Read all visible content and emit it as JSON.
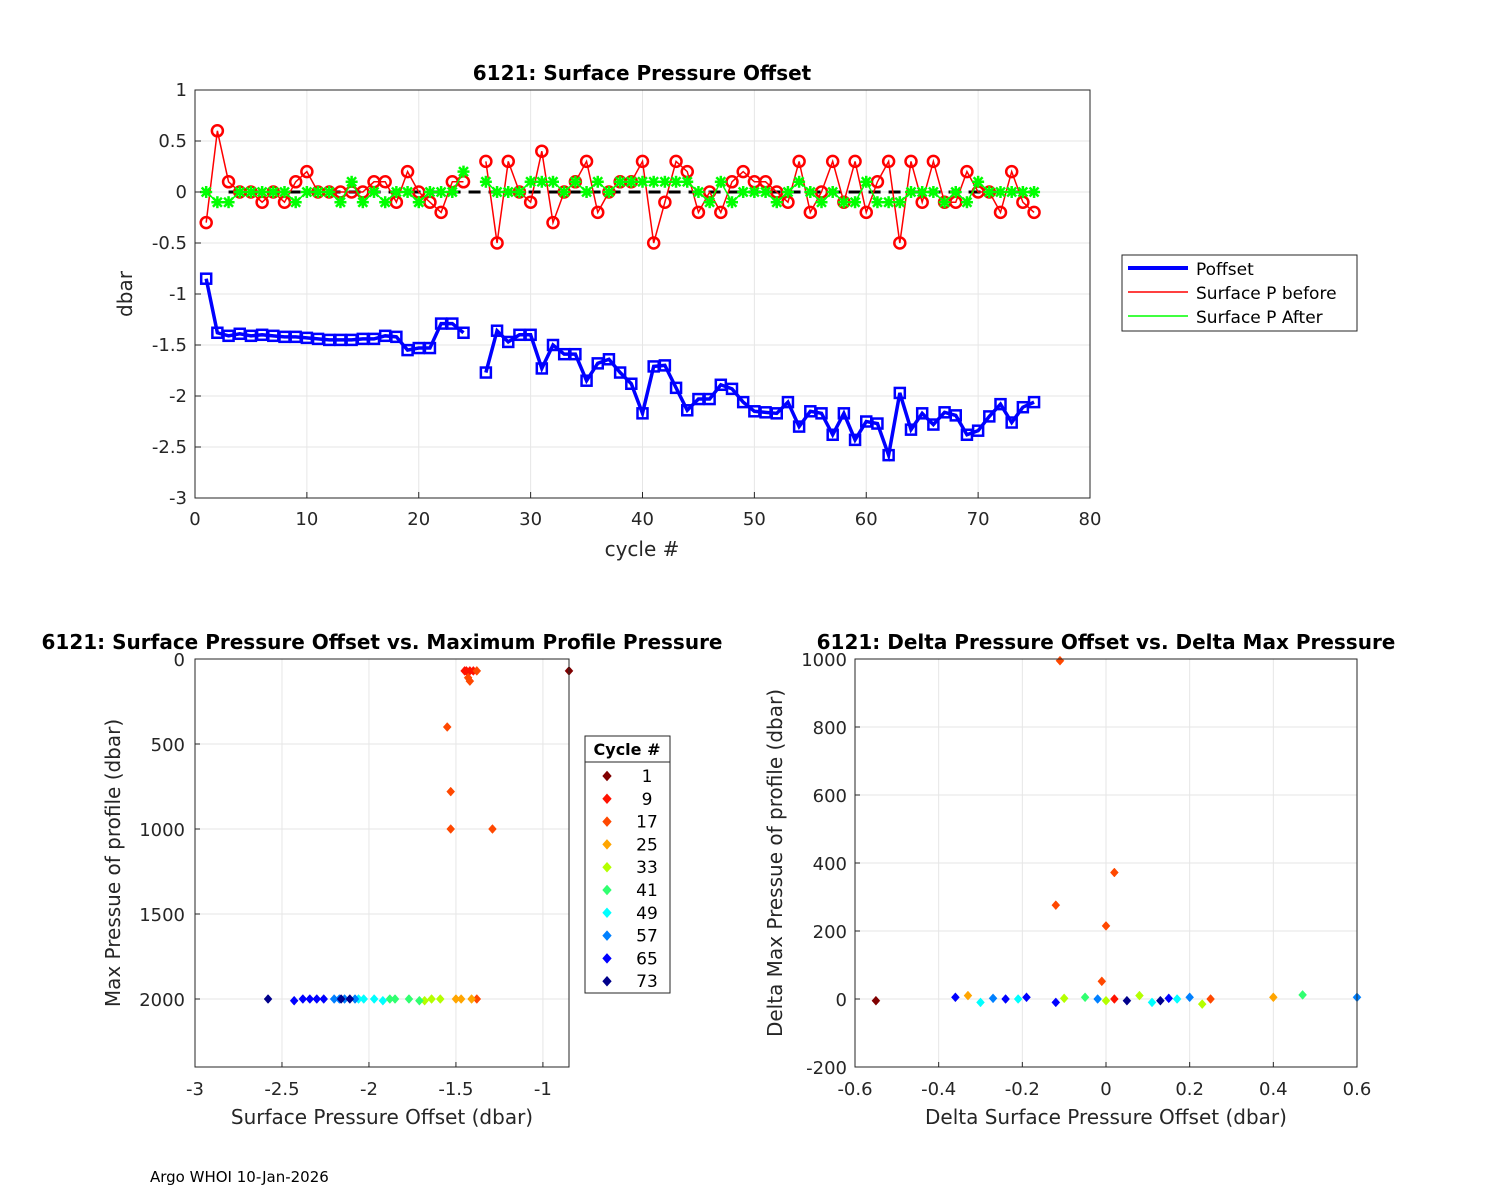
{
  "chart_data": [
    {
      "type": "line",
      "title": "6121: Surface Pressure Offset",
      "xlabel": "cycle #",
      "ylabel": "dbar",
      "xlim": [
        0,
        80
      ],
      "ylim": [
        -3,
        1
      ],
      "xticks": [
        0,
        10,
        20,
        30,
        40,
        50,
        60,
        70,
        80
      ],
      "yticks": [
        1,
        0.5,
        0,
        -0.5,
        -1,
        -1.5,
        -2,
        -2.5,
        -3
      ],
      "grid": true,
      "legend_position": "right",
      "reference_line": {
        "y": 0,
        "style": "dashed",
        "color": "#000000"
      },
      "series": [
        {
          "name": "Poffset",
          "color": "#0000ff",
          "marker": "square",
          "x": [
            1,
            2,
            3,
            4,
            5,
            6,
            7,
            8,
            9,
            10,
            11,
            12,
            13,
            14,
            15,
            16,
            17,
            18,
            19,
            20,
            21,
            22,
            23,
            24,
            26,
            27,
            28,
            29,
            30,
            31,
            32,
            33,
            34,
            35,
            36,
            37,
            38,
            39,
            40,
            41,
            42,
            43,
            44,
            45,
            46,
            47,
            48,
            49,
            50,
            51,
            52,
            53,
            54,
            55,
            56,
            57,
            58,
            59,
            60,
            61,
            62,
            63,
            64,
            65,
            66,
            67,
            68,
            69,
            70,
            71,
            72,
            73,
            74,
            75
          ],
          "values": [
            -0.85,
            -1.38,
            -1.41,
            -1.39,
            -1.41,
            -1.4,
            -1.41,
            -1.42,
            -1.42,
            -1.43,
            -1.44,
            -1.45,
            -1.45,
            -1.45,
            -1.44,
            -1.44,
            -1.41,
            -1.42,
            -1.55,
            -1.53,
            -1.53,
            -1.29,
            -1.29,
            -1.38,
            -1.77,
            -1.36,
            -1.47,
            -1.4,
            -1.4,
            -1.73,
            -1.5,
            -1.59,
            -1.59,
            -1.85,
            -1.68,
            -1.64,
            -1.77,
            -1.88,
            -2.17,
            -1.71,
            -1.7,
            -1.92,
            -2.14,
            -2.03,
            -2.03,
            -1.89,
            -1.93,
            -2.06,
            -2.15,
            -2.16,
            -2.17,
            -2.06,
            -2.3,
            -2.15,
            -2.17,
            -2.38,
            -2.17,
            -2.43,
            -2.25,
            -2.27,
            -2.58,
            -1.97,
            -2.33,
            -2.17,
            -2.28,
            -2.16,
            -2.19,
            -2.38,
            -2.34,
            -2.2,
            -2.08,
            -2.26,
            -2.11,
            -2.06
          ]
        },
        {
          "name": "Surface P before",
          "color": "#ff0000",
          "marker": "circle",
          "x": [
            1,
            2,
            3,
            4,
            5,
            6,
            7,
            8,
            9,
            10,
            11,
            12,
            13,
            14,
            15,
            16,
            17,
            18,
            19,
            20,
            21,
            22,
            23,
            24,
            26,
            27,
            28,
            29,
            30,
            31,
            32,
            33,
            34,
            35,
            36,
            37,
            38,
            39,
            40,
            41,
            42,
            43,
            44,
            45,
            46,
            47,
            48,
            49,
            50,
            51,
            52,
            53,
            54,
            55,
            56,
            57,
            58,
            59,
            60,
            61,
            62,
            63,
            64,
            65,
            66,
            67,
            68,
            69,
            70,
            71,
            72,
            73,
            74,
            75
          ],
          "values": [
            -0.3,
            0.6,
            0.1,
            0,
            0,
            -0.1,
            0,
            -0.1,
            0.1,
            0.2,
            0,
            0,
            0,
            0,
            0,
            0.1,
            0.1,
            -0.1,
            0.2,
            0,
            -0.1,
            -0.2,
            0.1,
            0.1,
            0.3,
            -0.5,
            0.3,
            0,
            -0.1,
            0.4,
            -0.3,
            0,
            0.1,
            0.3,
            -0.2,
            0,
            0.1,
            0.1,
            0.3,
            -0.5,
            -0.1,
            0.3,
            0.2,
            -0.2,
            0,
            -0.2,
            0.1,
            0.2,
            0.1,
            0.1,
            0,
            -0.1,
            0.3,
            -0.2,
            0,
            0.3,
            -0.1,
            0.3,
            -0.2,
            0.1,
            0.3,
            -0.5,
            0.3,
            -0.1,
            0.3,
            -0.1,
            -0.1,
            0.2,
            0,
            0,
            -0.2,
            0.2,
            -0.1,
            -0.2
          ]
        },
        {
          "name": "Surface P After",
          "color": "#00ff00",
          "marker": "asterisk",
          "x": [
            1,
            2,
            3,
            4,
            5,
            6,
            7,
            8,
            9,
            10,
            11,
            12,
            13,
            14,
            15,
            16,
            17,
            18,
            19,
            20,
            21,
            22,
            23,
            24,
            26,
            27,
            28,
            29,
            30,
            31,
            32,
            33,
            34,
            35,
            36,
            37,
            38,
            39,
            40,
            41,
            42,
            43,
            44,
            45,
            46,
            47,
            48,
            49,
            50,
            51,
            52,
            53,
            54,
            55,
            56,
            57,
            58,
            59,
            60,
            61,
            62,
            63,
            64,
            65,
            66,
            67,
            68,
            69,
            70,
            71,
            72,
            73,
            74,
            75
          ],
          "values": [
            0,
            -0.1,
            -0.1,
            0,
            0,
            0,
            0,
            0,
            -0.1,
            0,
            0,
            0,
            -0.1,
            0.1,
            -0.1,
            0,
            -0.1,
            0,
            0,
            -0.1,
            0,
            0,
            0,
            0.2,
            0.1,
            0,
            0,
            0,
            0.1,
            0.1,
            0.1,
            0,
            0.1,
            0,
            0.1,
            0,
            0.1,
            0.1,
            0.1,
            0.1,
            0.1,
            0.1,
            0.1,
            0,
            -0.1,
            0.1,
            -0.1,
            0,
            0,
            0,
            -0.1,
            0,
            0.1,
            0,
            -0.1,
            0,
            -0.1,
            -0.1,
            0.1,
            -0.1,
            -0.1,
            -0.1,
            0,
            0,
            0,
            -0.1,
            0,
            -0.1,
            0.1,
            0,
            0,
            0,
            0,
            0
          ]
        }
      ]
    },
    {
      "type": "scatter",
      "title": "6121: Surface Pressure Offset vs. Maximum Profile Pressure",
      "xlabel": "Surface Pressure Offset (dbar)",
      "ylabel": "Max Pressue of profile (dbar)",
      "xlim": [
        -3,
        -0.85
      ],
      "ylim": [
        0,
        2400
      ],
      "y_reversed": true,
      "xticks": [
        -3,
        -2.5,
        -2,
        -1.5,
        -1
      ],
      "yticks": [
        0,
        500,
        1000,
        1500,
        2000
      ],
      "grid": true,
      "legend_title": "Cycle #",
      "legend_entries": [
        {
          "label": "1",
          "color": "#800000"
        },
        {
          "label": "9",
          "color": "#ff1200"
        },
        {
          "label": "17",
          "color": "#ff4800"
        },
        {
          "label": "25",
          "color": "#ffa500"
        },
        {
          "label": "33",
          "color": "#b4ff00"
        },
        {
          "label": "41",
          "color": "#30ff70"
        },
        {
          "label": "49",
          "color": "#00ffff"
        },
        {
          "label": "57",
          "color": "#0080ff"
        },
        {
          "label": "65",
          "color": "#0000ff"
        },
        {
          "label": "73",
          "color": "#00008b"
        }
      ],
      "points": [
        {
          "x": -0.85,
          "y": 70,
          "cycle": 1
        },
        {
          "x": -1.44,
          "y": 70,
          "cycle": 9
        },
        {
          "x": -1.42,
          "y": 70,
          "cycle": 12
        },
        {
          "x": -1.4,
          "y": 70,
          "cycle": 15
        },
        {
          "x": -1.38,
          "y": 70,
          "cycle": 17
        },
        {
          "x": -1.45,
          "y": 70,
          "cycle": 14
        },
        {
          "x": -1.43,
          "y": 110,
          "cycle": 18
        },
        {
          "x": -1.42,
          "y": 130,
          "cycle": 19
        },
        {
          "x": -1.55,
          "y": 400,
          "cycle": 20
        },
        {
          "x": -1.53,
          "y": 780,
          "cycle": 21
        },
        {
          "x": -1.53,
          "y": 1000,
          "cycle": 22
        },
        {
          "x": -1.29,
          "y": 1000,
          "cycle": 23
        },
        {
          "x": -1.38,
          "y": 2000,
          "cycle": 24
        },
        {
          "x": -1.41,
          "y": 2000,
          "cycle": 26
        },
        {
          "x": -1.47,
          "y": 2000,
          "cycle": 29
        },
        {
          "x": -1.5,
          "y": 2000,
          "cycle": 32
        },
        {
          "x": -1.59,
          "y": 2000,
          "cycle": 34
        },
        {
          "x": -1.64,
          "y": 2000,
          "cycle": 37
        },
        {
          "x": -1.68,
          "y": 2010,
          "cycle": 39
        },
        {
          "x": -1.71,
          "y": 2010,
          "cycle": 41
        },
        {
          "x": -1.77,
          "y": 2000,
          "cycle": 43
        },
        {
          "x": -1.85,
          "y": 2000,
          "cycle": 45
        },
        {
          "x": -1.88,
          "y": 2000,
          "cycle": 47
        },
        {
          "x": -1.92,
          "y": 2010,
          "cycle": 49
        },
        {
          "x": -1.97,
          "y": 2000,
          "cycle": 51
        },
        {
          "x": -2.03,
          "y": 2000,
          "cycle": 53
        },
        {
          "x": -2.06,
          "y": 2000,
          "cycle": 55
        },
        {
          "x": -2.08,
          "y": 2000,
          "cycle": 57
        },
        {
          "x": -2.14,
          "y": 2000,
          "cycle": 59
        },
        {
          "x": -2.17,
          "y": 2000,
          "cycle": 61
        },
        {
          "x": -2.2,
          "y": 2000,
          "cycle": 63
        },
        {
          "x": -2.26,
          "y": 2000,
          "cycle": 65
        },
        {
          "x": -2.3,
          "y": 2000,
          "cycle": 67
        },
        {
          "x": -2.34,
          "y": 2000,
          "cycle": 69
        },
        {
          "x": -2.38,
          "y": 2000,
          "cycle": 71
        },
        {
          "x": -2.43,
          "y": 2010,
          "cycle": 72
        },
        {
          "x": -2.58,
          "y": 2000,
          "cycle": 73
        },
        {
          "x": -2.16,
          "y": 2000,
          "cycle": 74
        },
        {
          "x": -2.11,
          "y": 2000,
          "cycle": 75
        }
      ]
    },
    {
      "type": "scatter",
      "title": "6121: Delta Pressure Offset vs. Delta Max Pressure",
      "xlabel": "Delta Surface Pressure Offset (dbar)",
      "ylabel": "Delta Max Pressue of profile (dbar)",
      "xlim": [
        -0.6,
        0.6
      ],
      "ylim": [
        -200,
        1000
      ],
      "xticks": [
        -0.6,
        -0.4,
        -0.2,
        0,
        0.2,
        0.4,
        0.6
      ],
      "yticks": [
        1000,
        800,
        600,
        400,
        200,
        0,
        -200
      ],
      "grid": true,
      "points": [
        {
          "x": -0.55,
          "y": -5,
          "cycle": 2
        },
        {
          "x": -0.11,
          "y": 995,
          "cycle": 24
        },
        {
          "x": 0.02,
          "y": 372,
          "cycle": 21
        },
        {
          "x": -0.12,
          "y": 276,
          "cycle": 20
        },
        {
          "x": 0.0,
          "y": 215,
          "cycle": 22
        },
        {
          "x": -0.01,
          "y": 52,
          "cycle": 19
        },
        {
          "x": 0.25,
          "y": 0,
          "cycle": 23
        },
        {
          "x": 0.4,
          "y": 5,
          "cycle": 27
        },
        {
          "x": 0.47,
          "y": 12,
          "cycle": 42
        },
        {
          "x": 0.6,
          "y": 5,
          "cycle": 62
        },
        {
          "x": -0.36,
          "y": 5,
          "cycle": 66
        },
        {
          "x": -0.33,
          "y": 10,
          "cycle": 31
        },
        {
          "x": -0.3,
          "y": -10,
          "cycle": 54
        },
        {
          "x": -0.27,
          "y": 2,
          "cycle": 58
        },
        {
          "x": -0.24,
          "y": 0,
          "cycle": 66
        },
        {
          "x": -0.21,
          "y": 0,
          "cycle": 50
        },
        {
          "x": -0.19,
          "y": 5,
          "cycle": 70
        },
        {
          "x": -0.12,
          "y": -10,
          "cycle": 71
        },
        {
          "x": -0.1,
          "y": 2,
          "cycle": 40
        },
        {
          "x": -0.05,
          "y": 5,
          "cycle": 48
        },
        {
          "x": -0.02,
          "y": 0,
          "cycle": 60
        },
        {
          "x": 0.0,
          "y": -5,
          "cycle": 38
        },
        {
          "x": 0.02,
          "y": 0,
          "cycle": 15
        },
        {
          "x": 0.05,
          "y": -5,
          "cycle": 74
        },
        {
          "x": 0.08,
          "y": 10,
          "cycle": 33
        },
        {
          "x": 0.11,
          "y": -10,
          "cycle": 52
        },
        {
          "x": 0.13,
          "y": -5,
          "cycle": 73
        },
        {
          "x": 0.15,
          "y": 2,
          "cycle": 68
        },
        {
          "x": 0.17,
          "y": 0,
          "cycle": 56
        },
        {
          "x": 0.2,
          "y": 5,
          "cycle": 64
        },
        {
          "x": 0.23,
          "y": -15,
          "cycle": 34
        }
      ]
    }
  ],
  "legend_top": {
    "entries": [
      {
        "label": "Poffset",
        "color": "#0000ff"
      },
      {
        "label": "Surface P before",
        "color": "#ff0000"
      },
      {
        "label": "Surface P After",
        "color": "#00ff00"
      }
    ]
  },
  "footer": "Argo WHOI 10-Jan-2026"
}
